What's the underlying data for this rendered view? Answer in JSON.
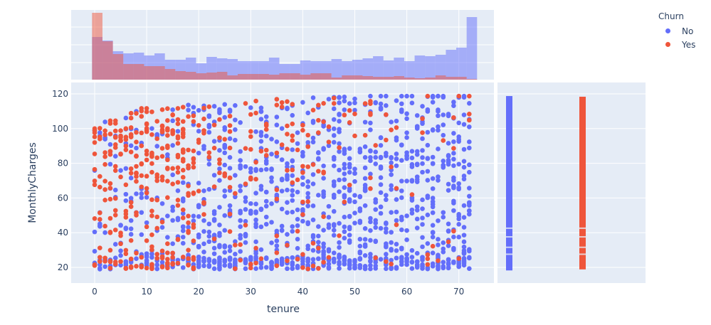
{
  "chart_data": {
    "type": "scatter",
    "title": "",
    "xlabel": "tenure",
    "ylabel": "MonthlyCharges",
    "xlim": [
      -4.5,
      76.5
    ],
    "ylim": [
      10.5,
      124.5
    ],
    "x_ticks": [
      0,
      10,
      20,
      30,
      40,
      50,
      60,
      70
    ],
    "y_ticks": [
      20,
      40,
      60,
      80,
      100,
      120
    ],
    "grid": true,
    "legend": {
      "title": "Churn",
      "position": "top-right",
      "entries": [
        "No",
        "Yes"
      ]
    },
    "series": [
      {
        "name": "No",
        "color": "#636efa",
        "marker": "circle",
        "description": "customers who did not churn; spread across tenure 0-72 and charges ~18-119, dense band at ~20-25"
      },
      {
        "name": "Yes",
        "color": "#ef553b",
        "marker": "circle",
        "description": "customers who churned; concentrated at low tenure (0-25) and high charges (70-105)"
      }
    ],
    "marginal_x": {
      "type": "histogram",
      "bin_width": 2,
      "bin_starts": [
        0,
        2,
        4,
        6,
        8,
        10,
        12,
        14,
        16,
        18,
        20,
        22,
        24,
        26,
        28,
        30,
        32,
        34,
        36,
        38,
        40,
        42,
        44,
        46,
        48,
        50,
        52,
        54,
        56,
        58,
        60,
        62,
        64,
        66,
        68,
        70,
        72
      ],
      "series": [
        {
          "name": "No",
          "heights": [
            60,
            55,
            40,
            37,
            38,
            34,
            37,
            28,
            28,
            31,
            23,
            32,
            30,
            29,
            26,
            26,
            26,
            31,
            22,
            22,
            27,
            26,
            26,
            29,
            26,
            28,
            30,
            33,
            27,
            31,
            26,
            34,
            33,
            35,
            42,
            45,
            88
          ]
        },
        {
          "name": "Yes",
          "heights": [
            94,
            54,
            36,
            22,
            22,
            19,
            19,
            15,
            12,
            11,
            9,
            10,
            11,
            6,
            8,
            8,
            8,
            7,
            9,
            9,
            7,
            9,
            9,
            3,
            6,
            6,
            5,
            4,
            4,
            5,
            3,
            2,
            3,
            6,
            4,
            4,
            1
          ]
        }
      ],
      "note": "relative bar heights in pixels (overlaid, semi-transparent)"
    },
    "marginal_y": {
      "type": "rug",
      "series": [
        {
          "name": "No",
          "range": [
            18.25,
            118.75
          ]
        },
        {
          "name": "Yes",
          "range": [
            18.85,
            118.35
          ]
        }
      ]
    }
  },
  "legend": {
    "title": "Churn",
    "items": [
      {
        "label": "No",
        "color": "#636efa"
      },
      {
        "label": "Yes",
        "color": "#ef553b"
      }
    ]
  },
  "axes": {
    "x_title": "tenure",
    "y_title": "MonthlyCharges",
    "x_tick_labels": [
      "0",
      "10",
      "20",
      "30",
      "40",
      "50",
      "60",
      "70"
    ],
    "y_tick_labels": [
      "20",
      "40",
      "60",
      "80",
      "100",
      "120"
    ]
  },
  "colors": {
    "plot_bg": "#e5ecf6",
    "grid": "#ffffff",
    "no": "#636efa",
    "yes": "#ef553b"
  }
}
